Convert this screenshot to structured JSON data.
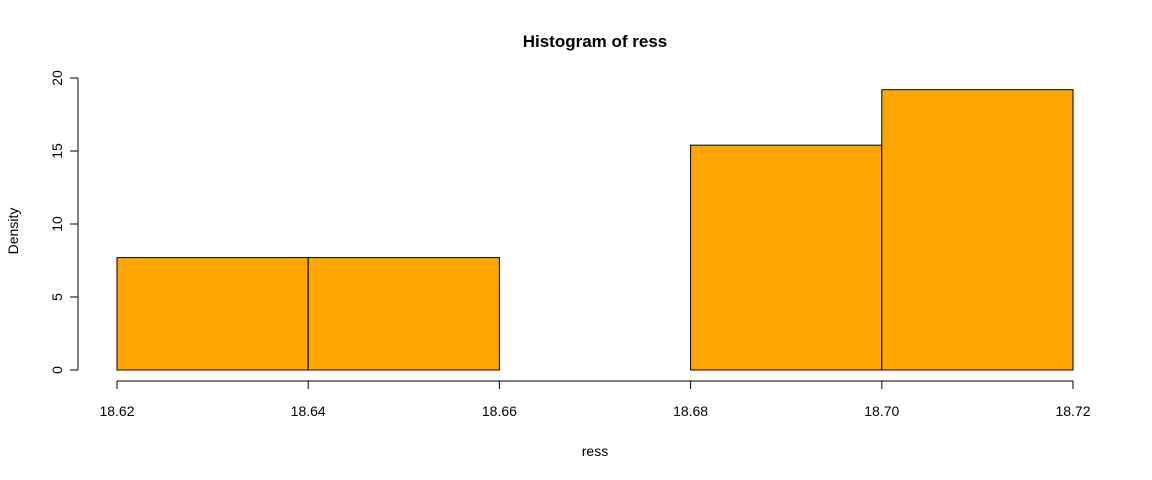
{
  "chart_data": {
    "type": "bar",
    "title": "Histogram of ress",
    "xlabel": "ress",
    "ylabel": "Density",
    "bins": [
      {
        "start": 18.62,
        "end": 18.64,
        "density": 7.7
      },
      {
        "start": 18.64,
        "end": 18.66,
        "density": 7.7
      },
      {
        "start": 18.66,
        "end": 18.68,
        "density": 0
      },
      {
        "start": 18.68,
        "end": 18.7,
        "density": 15.4
      },
      {
        "start": 18.7,
        "end": 18.72,
        "density": 19.2
      }
    ],
    "x_ticks": [
      "18.62",
      "18.64",
      "18.66",
      "18.68",
      "18.70",
      "18.72"
    ],
    "x_tick_values": [
      18.62,
      18.64,
      18.66,
      18.68,
      18.7,
      18.72
    ],
    "y_ticks": [
      "0",
      "5",
      "10",
      "15",
      "20"
    ],
    "y_tick_values": [
      0,
      5,
      10,
      15,
      20
    ],
    "xlim": [
      18.62,
      18.72
    ],
    "ylim": [
      0,
      20
    ],
    "bar_color": "#FFA500",
    "grid": false,
    "legend": "none"
  }
}
